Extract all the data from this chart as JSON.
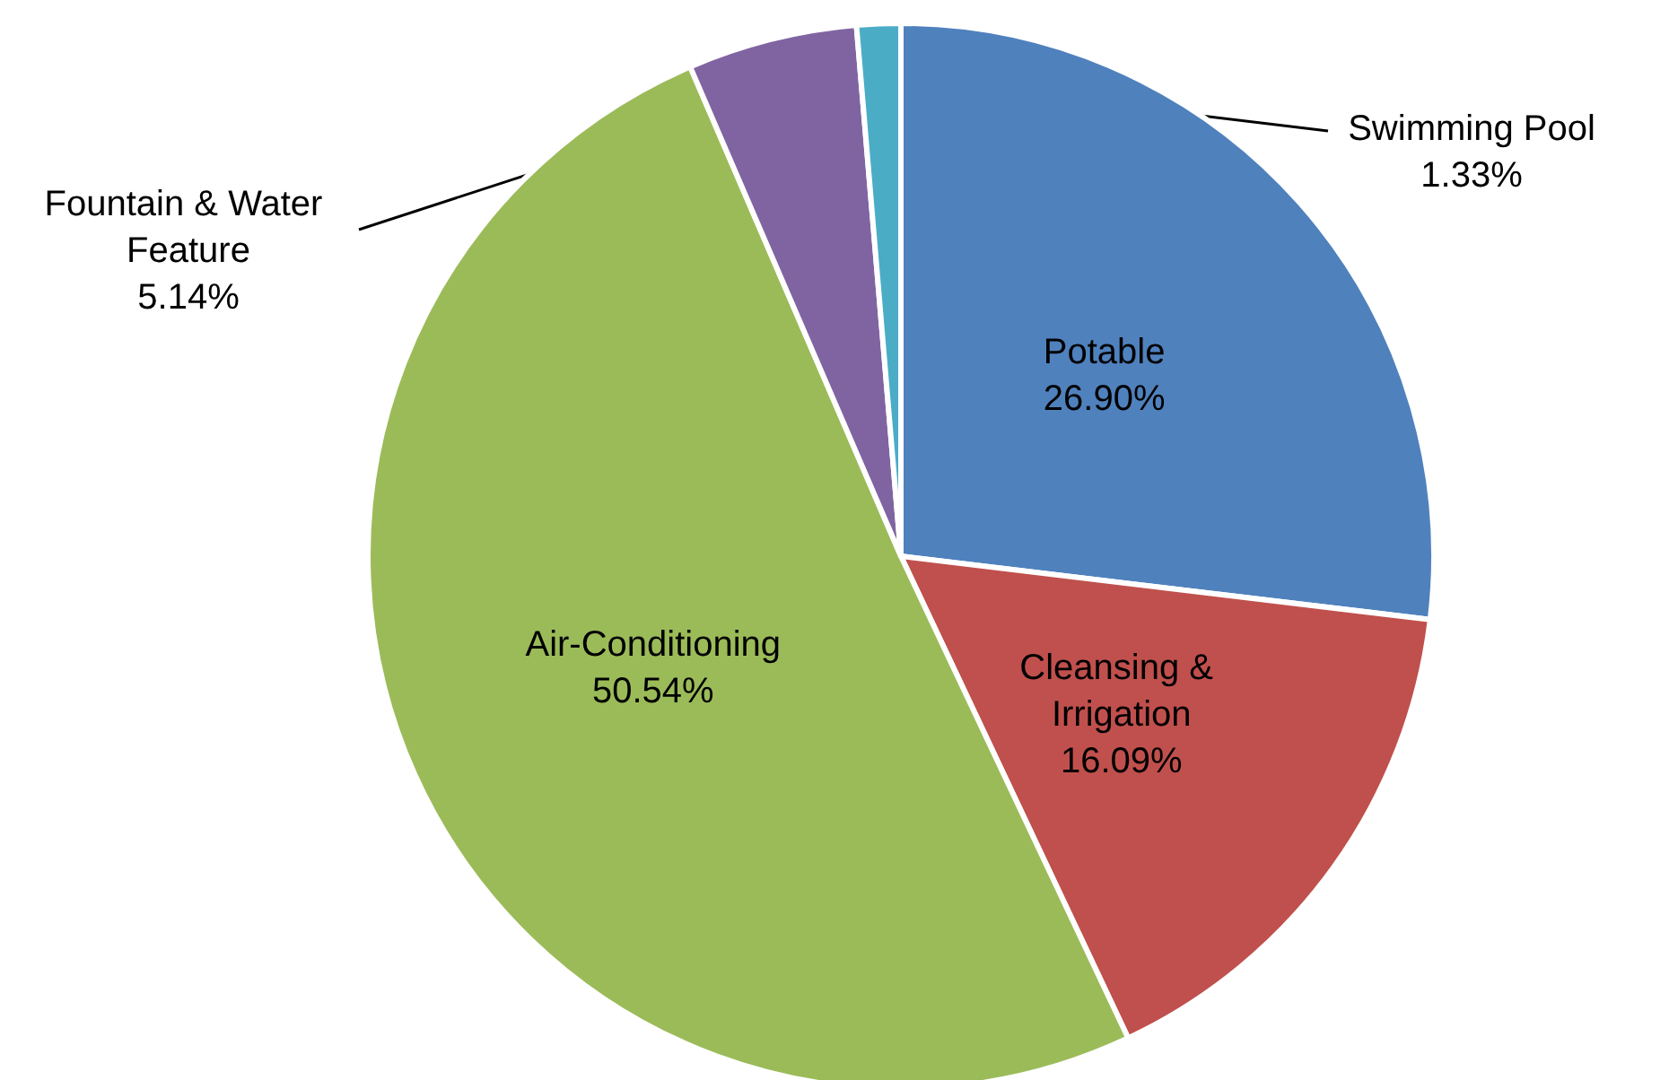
{
  "chart_data": {
    "type": "pie",
    "categories": [
      "Potable",
      "Cleansing & Irrigation",
      "Air-Conditioning",
      "Fountain & Water Feature",
      "Swimming Pool"
    ],
    "values": [
      26.9,
      16.09,
      50.54,
      5.14,
      1.33
    ],
    "colors": [
      "#4f81bd",
      "#c0504d",
      "#9bbb59",
      "#8064a2",
      "#4bacc6"
    ],
    "value_labels": [
      "26.90%",
      "16.09%",
      "50.54%",
      "5.14%",
      "1.33%"
    ],
    "legend": false
  }
}
